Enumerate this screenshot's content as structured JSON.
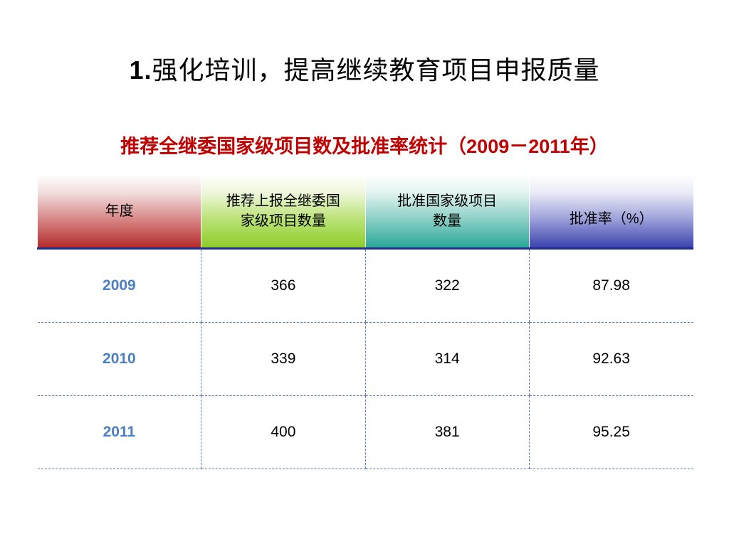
{
  "slide": {
    "title_number": "1.",
    "title_text": "强化培训，提高继续教育项目申报质量"
  },
  "table": {
    "caption": "推荐全继委国家级项目数及批准率统计（2009－2011年）",
    "headers": {
      "year": "年度",
      "reported_line1": "推荐上报全继委国",
      "reported_line2": "家级项目数量",
      "approved_line1": "批准国家级项目",
      "approved_line2": "数量",
      "rate": "批准率（%）"
    },
    "rows": [
      {
        "year": "2009",
        "reported": "366",
        "approved": "322",
        "rate": "87.98"
      },
      {
        "year": "2010",
        "reported": "339",
        "approved": "314",
        "rate": "92.63"
      },
      {
        "year": "2011",
        "reported": "400",
        "approved": "381",
        "rate": "95.25"
      }
    ]
  },
  "colors": {
    "caption": "#c00000",
    "year_text": "#4a7fc1",
    "header_year": "#b52b2b",
    "header_reported": "#8ccc2a",
    "header_approved": "#2aa79a",
    "header_rate": "#3b44ad"
  }
}
